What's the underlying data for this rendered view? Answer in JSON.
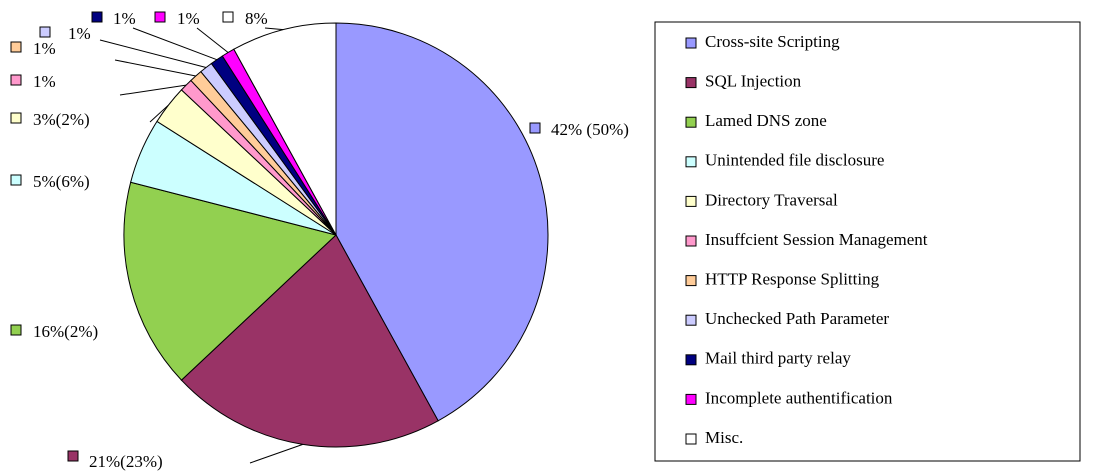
{
  "chart_data": {
    "type": "pie",
    "categories": [
      "Cross-site Scripting",
      "SQL Injection",
      "Lamed DNS zone",
      "Unintended file disclosure",
      "Directory Traversal",
      "Insuffcient Session Management",
      "HTTP Response Splitting",
      "Unchecked Path Parameter",
      "Mail third party relay",
      "Incomplete authentification",
      "Misc."
    ],
    "values": [
      42,
      21,
      16,
      5,
      3,
      1,
      1,
      1,
      1,
      1,
      8
    ],
    "value_labels": [
      "42% (50%)",
      "21%(23%)",
      "16%(2%)",
      "5%(6%)",
      "3%(2%)",
      "1%",
      "1%",
      "1%",
      "1%",
      "1%",
      "8%"
    ],
    "colors": [
      "#9999ff",
      "#993366",
      "#92d050",
      "#ccffff",
      "#ffffcc",
      "#ff99cc",
      "#ffcc99",
      "#ccccff",
      "#000080",
      "#ff00ff",
      "#ffffff"
    ],
    "legend": "right"
  }
}
